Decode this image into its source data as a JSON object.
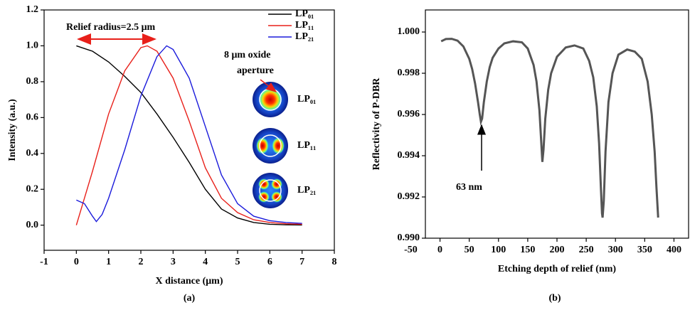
{
  "chart_data": [
    {
      "type": "line",
      "label": "(a)",
      "x_label": "X distance (μm)",
      "y_label": "Intensity (a.u.)",
      "xlim": [
        -1,
        8
      ],
      "ylim": [
        -0.14,
        1.2
      ],
      "xticks": [
        -1,
        0,
        1,
        2,
        3,
        4,
        5,
        6,
        7,
        8
      ],
      "yticks": [
        {
          "value": 0,
          "label": "0.0"
        },
        0.2,
        0.4,
        0.6,
        0.8,
        {
          "value": 1,
          "label": "1.0"
        },
        1.2
      ],
      "legend": "upper right",
      "annotations": [
        "Relief radius=2.5 μm",
        "8 μm oxide",
        "aperture"
      ],
      "mode_labels": [
        "LP₀₁",
        "LP₁₁",
        "LP₂₁"
      ],
      "series": [
        {
          "name": "LP₀₁",
          "color": "#000000",
          "x": [
            0,
            0.5,
            1,
            1.5,
            2,
            2.5,
            3,
            3.5,
            4,
            4.5,
            5,
            5.5,
            6,
            6.5,
            7
          ],
          "values": [
            1.0,
            0.97,
            0.91,
            0.83,
            0.74,
            0.62,
            0.49,
            0.35,
            0.2,
            0.09,
            0.04,
            0.015,
            0.005,
            0.002,
            0.001
          ]
        },
        {
          "name": "LP₁₁",
          "color": "#e8201a",
          "x": [
            0,
            0.25,
            0.5,
            1,
            1.5,
            2,
            2.2,
            2.5,
            3,
            3.5,
            4,
            4.5,
            5,
            5.5,
            6,
            6.5,
            7
          ],
          "values": [
            0.0,
            0.15,
            0.3,
            0.62,
            0.86,
            0.99,
            1.0,
            0.97,
            0.82,
            0.58,
            0.32,
            0.15,
            0.07,
            0.03,
            0.015,
            0.008,
            0.005
          ]
        },
        {
          "name": "LP₂₁",
          "color": "#1a1adb",
          "x": [
            0,
            0.25,
            0.5,
            0.62,
            0.8,
            1,
            1.5,
            2,
            2.5,
            2.8,
            3,
            3.5,
            4,
            4.5,
            5,
            5.5,
            6,
            6.5,
            7
          ],
          "values": [
            0.14,
            0.12,
            0.05,
            0.02,
            0.06,
            0.15,
            0.42,
            0.72,
            0.94,
            1.0,
            0.98,
            0.82,
            0.55,
            0.28,
            0.12,
            0.05,
            0.025,
            0.015,
            0.01
          ]
        }
      ]
    },
    {
      "type": "line",
      "label": "(b)",
      "x_label": "Etching depth of relief (nm)",
      "y_label": "Reflectivity of P-DBR",
      "xlim": [
        -25,
        425
      ],
      "ylim": [
        0.99,
        1.00107
      ],
      "xticks": [
        -50,
        0,
        50,
        100,
        150,
        200,
        250,
        300,
        350,
        400
      ],
      "yticks": [
        {
          "value": 0.99,
          "label": "0.990"
        },
        {
          "value": 0.992,
          "label": "0.992"
        },
        {
          "value": 0.994,
          "label": "0.994"
        },
        {
          "value": 0.996,
          "label": "0.996"
        },
        {
          "value": 0.998,
          "label": "0.998"
        },
        {
          "value": 1,
          "label": "1.000"
        }
      ],
      "annotations": [
        "63 nm"
      ],
      "series": [
        {
          "color": "#555555",
          "x": [
            2,
            10,
            20,
            30,
            40,
            50,
            55,
            60,
            65,
            68,
            70,
            72,
            75,
            80,
            85,
            90,
            100,
            110,
            125,
            140,
            150,
            160,
            165,
            170,
            173,
            175,
            177,
            180,
            185,
            190,
            200,
            215,
            230,
            245,
            255,
            262,
            268,
            272,
            275,
            277,
            278,
            280,
            283,
            288,
            295,
            305,
            320,
            333,
            345,
            355,
            362,
            367,
            370,
            373
          ],
          "values": [
            0.99955,
            0.99966,
            0.99967,
            0.99958,
            0.9993,
            0.9987,
            0.9982,
            0.9975,
            0.9966,
            0.996,
            0.99565,
            0.9958,
            0.9966,
            0.9976,
            0.9983,
            0.99875,
            0.9992,
            0.99945,
            0.99955,
            0.9995,
            0.9992,
            0.9984,
            0.9976,
            0.9962,
            0.9947,
            0.9937,
            0.9943,
            0.9958,
            0.9972,
            0.998,
            0.9988,
            0.99925,
            0.99935,
            0.9992,
            0.9986,
            0.9978,
            0.9964,
            0.9946,
            0.9925,
            0.9912,
            0.991,
            0.9918,
            0.9942,
            0.9966,
            0.998,
            0.9989,
            0.99915,
            0.99905,
            0.9987,
            0.9976,
            0.996,
            0.9942,
            0.9925,
            0.991
          ]
        }
      ]
    }
  ]
}
